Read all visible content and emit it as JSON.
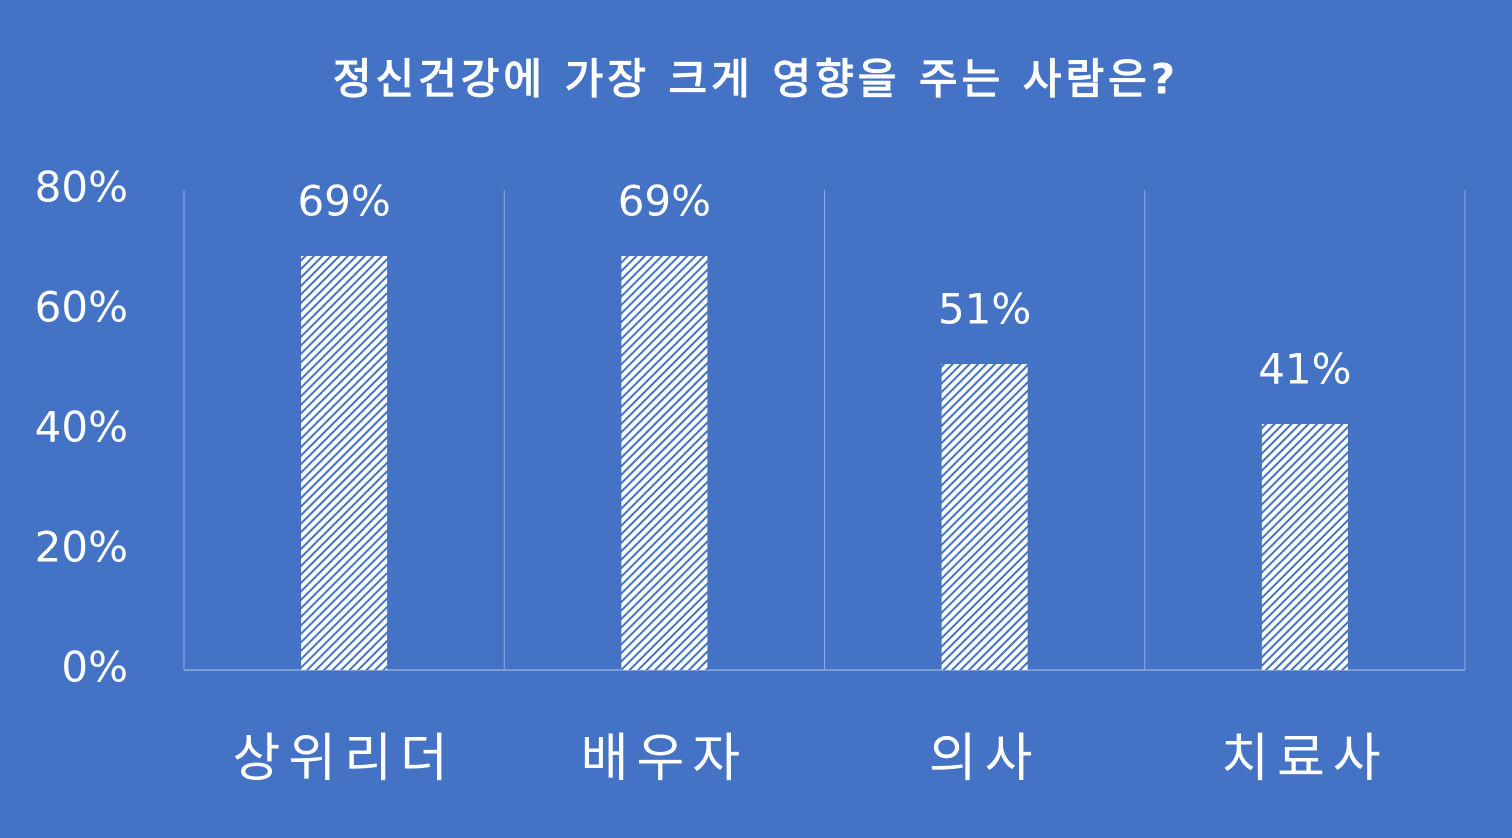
{
  "chart_data": {
    "type": "bar",
    "title": "정신건강에 가장 크게 영향을 주는 사람은?",
    "categories": [
      "상위리더",
      "배우자",
      "의사",
      "치료사"
    ],
    "values": [
      69,
      69,
      51,
      41
    ],
    "value_labels": [
      "69%",
      "69%",
      "51%",
      "41%"
    ],
    "color": "#ffffff",
    "ylim": [
      0,
      80
    ],
    "yticks": [
      {
        "value": 0,
        "label": "0%"
      },
      {
        "value": 20,
        "label": "20%"
      },
      {
        "value": 40,
        "label": "40%"
      },
      {
        "value": 60,
        "label": "60%"
      },
      {
        "value": 80,
        "label": "80%"
      }
    ]
  }
}
